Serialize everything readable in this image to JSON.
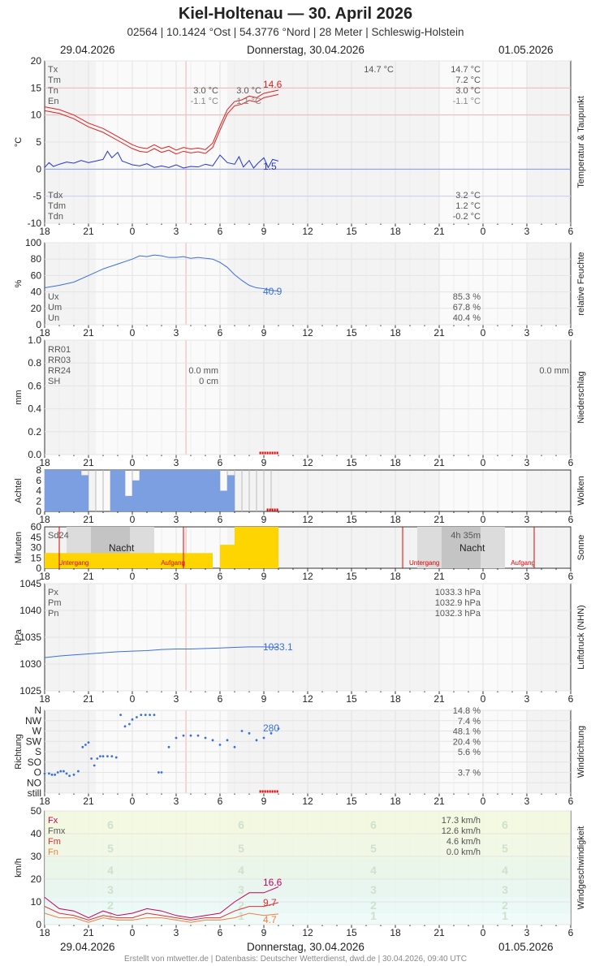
{
  "header": {
    "title": "Kiel-Holtenau  —  30. April 2026",
    "subtitle": "02564  |  10.1424 °Ost  |  54.3776 °Nord  |  28 Meter  |  Schleswig-Holstein",
    "date_left": "29.04.2026",
    "date_center": "Donnerstag, 30.04.2026",
    "date_right": "01.05.2026"
  },
  "footer": "Erstellt von mtwetter.de | Datenbasis: Deutscher Wetterdienst, dwd.de | 30.04.2026, 09:40 UTC",
  "x_axis": {
    "start_hour": 18,
    "span_hours": 36,
    "current_hour": 9.67,
    "tick_labels": [
      "18",
      "21",
      "0",
      "3",
      "6",
      "9",
      "12",
      "15",
      "18",
      "21",
      "0",
      "3",
      "6"
    ]
  },
  "colors": {
    "red": "#e02020",
    "blue": "#2233dd",
    "lightblue": "#3a6fe0",
    "cloud": "#7b9fe0",
    "sun": "#ffd500",
    "gust": "#c8005a",
    "wind_mean": "#e03030",
    "wind_min": "#f08040"
  },
  "chart_data": [
    {
      "id": "temp",
      "type": "line",
      "ylabel": "°C",
      "side_label": "Temperatur & Taupunkt",
      "ylim": [
        -10,
        20
      ],
      "yticks": [
        20,
        15,
        10,
        5,
        0,
        -5,
        -10
      ],
      "legend_top": [
        "Tx",
        "Tm",
        "Tn",
        "En"
      ],
      "legend_bottom": [
        "Tdx",
        "Tdm",
        "Tdn"
      ],
      "values_mid": [
        "14.7 °C",
        "3.0 °C",
        "3.0 °C",
        "-1.1 °C",
        "-1.1 °C"
      ],
      "values_right": [
        "14.7 °C",
        "7.2 °C",
        "3.0 °C",
        "-1.1 °C"
      ],
      "values_right_bottom": [
        "3.2 °C",
        "1.2 °C",
        "-0.2 °C"
      ],
      "last_temp": "14.6",
      "last_dew": "1.5",
      "series": [
        {
          "x": [
            0,
            1,
            2,
            3,
            4,
            5,
            6,
            6.5,
            7,
            7.5,
            8,
            8.5,
            9,
            9.5,
            10,
            10.5,
            11,
            11.5,
            12,
            12.5,
            13,
            13.5,
            14,
            14.5,
            15,
            15.5,
            16
          ],
          "y": [
            11.5,
            11,
            10,
            8.5,
            7.5,
            6,
            4.5,
            4,
            3.8,
            4.5,
            3.8,
            4.2,
            3.5,
            4,
            3.7,
            3.9,
            3.6,
            4.8,
            8,
            11,
            12.5,
            12.8,
            13.5,
            13.2,
            14,
            14.3,
            14.6
          ]
        },
        {
          "x": [
            0,
            1,
            2,
            3,
            4,
            5,
            6,
            6.5,
            7,
            7.5,
            8,
            8.5,
            9,
            9.5,
            10,
            10.5,
            11,
            11.5,
            12,
            12.5,
            13,
            13.5,
            14,
            14.5,
            15,
            15.5,
            16
          ],
          "y": [
            10.8,
            10.3,
            9.3,
            7.8,
            6.8,
            5.3,
            3.8,
            3.3,
            3.1,
            3.8,
            3.1,
            3.5,
            2.8,
            3.3,
            3,
            3.2,
            2.9,
            4,
            7.2,
            10.2,
            11.7,
            12,
            12.7,
            12.4,
            13.2,
            13.5,
            13.8
          ]
        },
        {
          "x": [
            0,
            0.3,
            0.6,
            1,
            1.5,
            2,
            2.5,
            3,
            3.5,
            4,
            4.3,
            4.6,
            5,
            5.3,
            5.6,
            6,
            6.5,
            7,
            7.5,
            8,
            8.5,
            9,
            9.5,
            10,
            10.5,
            11,
            11.5,
            12,
            12.5,
            13,
            13.3,
            13.6,
            14,
            14.3,
            14.6,
            15,
            15.3,
            15.6,
            16
          ],
          "y": [
            0.3,
            1.2,
            0.5,
            0.9,
            1.3,
            1.1,
            1.6,
            1.2,
            1.5,
            1.8,
            3.3,
            2.1,
            3.1,
            1.5,
            1.2,
            0.8,
            0.6,
            1,
            0.3,
            0.6,
            0.3,
            0.8,
            0.2,
            0.5,
            0.4,
            0.9,
            0.6,
            2.6,
            1.2,
            0.9,
            2.3,
            0.4,
            1.6,
            0.2,
            1.1,
            2.1,
            0.3,
            1.8,
            1.5
          ]
        }
      ]
    },
    {
      "id": "humidity",
      "type": "line",
      "ylabel": "%",
      "side_label": "relative Feuchte",
      "ylim": [
        0,
        100
      ],
      "yticks": [
        100,
        80,
        60,
        40,
        20,
        0
      ],
      "legend": [
        "Ux",
        "Um",
        "Un"
      ],
      "values_right": [
        "85.3 %",
        "67.8 %",
        "40.4 %"
      ],
      "last": "40.9",
      "series": [
        {
          "x": [
            0,
            1,
            2,
            3,
            4,
            5,
            6,
            6.5,
            7,
            7.5,
            8,
            8.5,
            9,
            9.5,
            10,
            10.5,
            11,
            11.5,
            12,
            12.5,
            13,
            13.5,
            14,
            14.5,
            15,
            15.5,
            16
          ],
          "y": [
            45,
            48,
            52,
            60,
            68,
            74,
            80,
            84,
            83,
            85,
            84,
            82,
            82,
            83,
            81,
            82,
            81,
            80,
            76,
            70,
            61,
            54,
            48,
            45,
            44,
            42,
            41
          ]
        }
      ]
    },
    {
      "id": "precip",
      "type": "bar",
      "ylabel": "mm",
      "side_label": "Niederschlag",
      "ylim": [
        0,
        1
      ],
      "yticks": [
        "1.0",
        "0.8",
        "0.6",
        "0.4",
        "0.2",
        "0.0"
      ],
      "legend": [
        "RR01",
        "RR03",
        "RR24",
        "SH"
      ],
      "values_mid": [
        "0.0 mm",
        "0 cm"
      ],
      "values_right": [
        "0.0 mm"
      ]
    },
    {
      "id": "clouds",
      "type": "bar",
      "ylabel": "Achtel",
      "side_label": "Wolken",
      "ylim": [
        0,
        8
      ],
      "yticks": [
        8,
        6,
        4,
        2,
        0
      ],
      "x": [
        0,
        0.5,
        1,
        1.5,
        2,
        2.5,
        3,
        3.5,
        4,
        4.5,
        5,
        5.5,
        6,
        6.5,
        7,
        7.5,
        8,
        8.5,
        9,
        9.5,
        10,
        10.5,
        11,
        11.5,
        12,
        12.5,
        13,
        13.5,
        14,
        14.5,
        15,
        15.5,
        16
      ],
      "values": [
        8,
        8,
        8,
        8,
        8,
        7,
        0,
        0,
        0,
        8,
        8,
        3,
        6,
        8,
        8,
        8,
        8,
        8,
        8,
        8,
        8,
        8,
        8,
        8,
        4,
        7,
        0,
        0,
        0,
        0,
        0,
        0,
        5
      ]
    },
    {
      "id": "sun",
      "type": "bar",
      "ylabel": "Minuten",
      "side_label": "Sonne",
      "ylim": [
        0,
        60
      ],
      "yticks": [
        60,
        45,
        30,
        15,
        0
      ],
      "legend": [
        "Sd24"
      ],
      "night_label": "Nacht",
      "sunset_label": "Untergang",
      "sunrise_label": "Aufgang",
      "sun_total": "4h 35m",
      "x": [
        0,
        11.5,
        12,
        13,
        14,
        15,
        16
      ],
      "values": [
        22,
        0,
        34,
        60,
        60,
        60,
        60
      ]
    },
    {
      "id": "pressure",
      "type": "line",
      "ylabel": "hPa",
      "side_label": "Luftdruck (NHN)",
      "ylim": [
        1025,
        1045
      ],
      "yticks": [
        1045,
        1040,
        1035,
        1030,
        1025
      ],
      "legend": [
        "Px",
        "Pm",
        "Pn"
      ],
      "values_right": [
        "1033.3 hPa",
        "1032.9 hPa",
        "1032.3 hPa"
      ],
      "last": "1033.1",
      "series": [
        {
          "x": [
            0,
            1,
            2,
            3,
            4,
            5,
            6,
            7,
            8,
            9,
            10,
            11,
            12,
            13,
            14,
            15,
            16
          ],
          "y": [
            1031.2,
            1031.5,
            1031.7,
            1031.9,
            1032.1,
            1032.3,
            1032.4,
            1032.5,
            1032.7,
            1032.8,
            1032.8,
            1032.9,
            1033,
            1033.1,
            1033.2,
            1033.2,
            1033.1
          ]
        }
      ]
    },
    {
      "id": "winddir",
      "type": "scatter",
      "ylabel": "Richtung",
      "side_label": "Windrichtung",
      "yticks": [
        "N",
        "NW",
        "W",
        "SW",
        "S",
        "SO",
        "O",
        "NO",
        "still"
      ],
      "values_right": [
        "14.8 %",
        "7.4 %",
        "48.1 %",
        "20.4 %",
        "5.6 %",
        "",
        "3.7 %",
        ""
      ],
      "last": "280",
      "x": [
        0,
        0.3,
        0.5,
        0.7,
        0.9,
        1.1,
        1.3,
        1.5,
        1.7,
        2,
        2.3,
        2.6,
        2.8,
        3,
        3.2,
        3.4,
        3.6,
        3.8,
        4,
        4.3,
        4.6,
        4.9,
        5.2,
        5.5,
        5.8,
        6,
        6.3,
        6.6,
        6.9,
        7.2,
        7.5,
        7.8,
        8,
        8.5,
        9,
        9.5,
        10,
        10.5,
        11,
        11.5,
        12,
        12.5,
        13,
        13.5,
        14,
        14.5,
        15,
        15.5,
        16
      ],
      "y": [
        85,
        85,
        80,
        80,
        90,
        95,
        95,
        85,
        75,
        80,
        95,
        200,
        210,
        220,
        150,
        120,
        150,
        160,
        160,
        160,
        160,
        155,
        340,
        290,
        300,
        320,
        330,
        340,
        340,
        340,
        340,
        90,
        90,
        200,
        240,
        250,
        250,
        250,
        240,
        230,
        210,
        230,
        200,
        270,
        260,
        230,
        240,
        260,
        280
      ]
    },
    {
      "id": "wind",
      "type": "line",
      "ylabel": "km/h",
      "side_label": "Windgeschwindigkeit",
      "ylim": [
        0,
        50
      ],
      "yticks": [
        50,
        40,
        30,
        20,
        10,
        0
      ],
      "legend": [
        "Fx",
        "Fmx",
        "Fm",
        "Fn"
      ],
      "values_right": [
        "17.3 km/h",
        "12.6 km/h",
        "4.6 km/h",
        "0.0 km/h"
      ],
      "beaufort": [
        "1",
        "2",
        "3",
        "4",
        "5",
        "6"
      ],
      "last_gust": "16.6",
      "last_mean": "9.7",
      "last_min": "4.7",
      "series": [
        {
          "x": [
            0,
            1,
            2,
            3,
            4,
            5,
            6,
            7,
            8,
            9,
            10,
            11,
            12,
            13,
            14,
            15,
            16
          ],
          "y": [
            12,
            7,
            6,
            3,
            6,
            4,
            5,
            7,
            6,
            4,
            3,
            4,
            5,
            10,
            14,
            14,
            16.6
          ]
        },
        {
          "x": [
            0,
            1,
            2,
            3,
            4,
            5,
            6,
            7,
            8,
            9,
            10,
            11,
            12,
            13,
            14,
            15,
            16
          ],
          "y": [
            8,
            5,
            4,
            2,
            4,
            3,
            3,
            5,
            4,
            3,
            2,
            3,
            3,
            6,
            8,
            8,
            9.7
          ]
        },
        {
          "x": [
            0,
            1,
            2,
            3,
            4,
            5,
            6,
            7,
            8,
            9,
            10,
            11,
            12,
            13,
            14,
            15,
            16
          ],
          "y": [
            5,
            3,
            3,
            1,
            3,
            2,
            2,
            3,
            3,
            2,
            1,
            2,
            2,
            3,
            5,
            4,
            4.7
          ]
        }
      ]
    }
  ]
}
